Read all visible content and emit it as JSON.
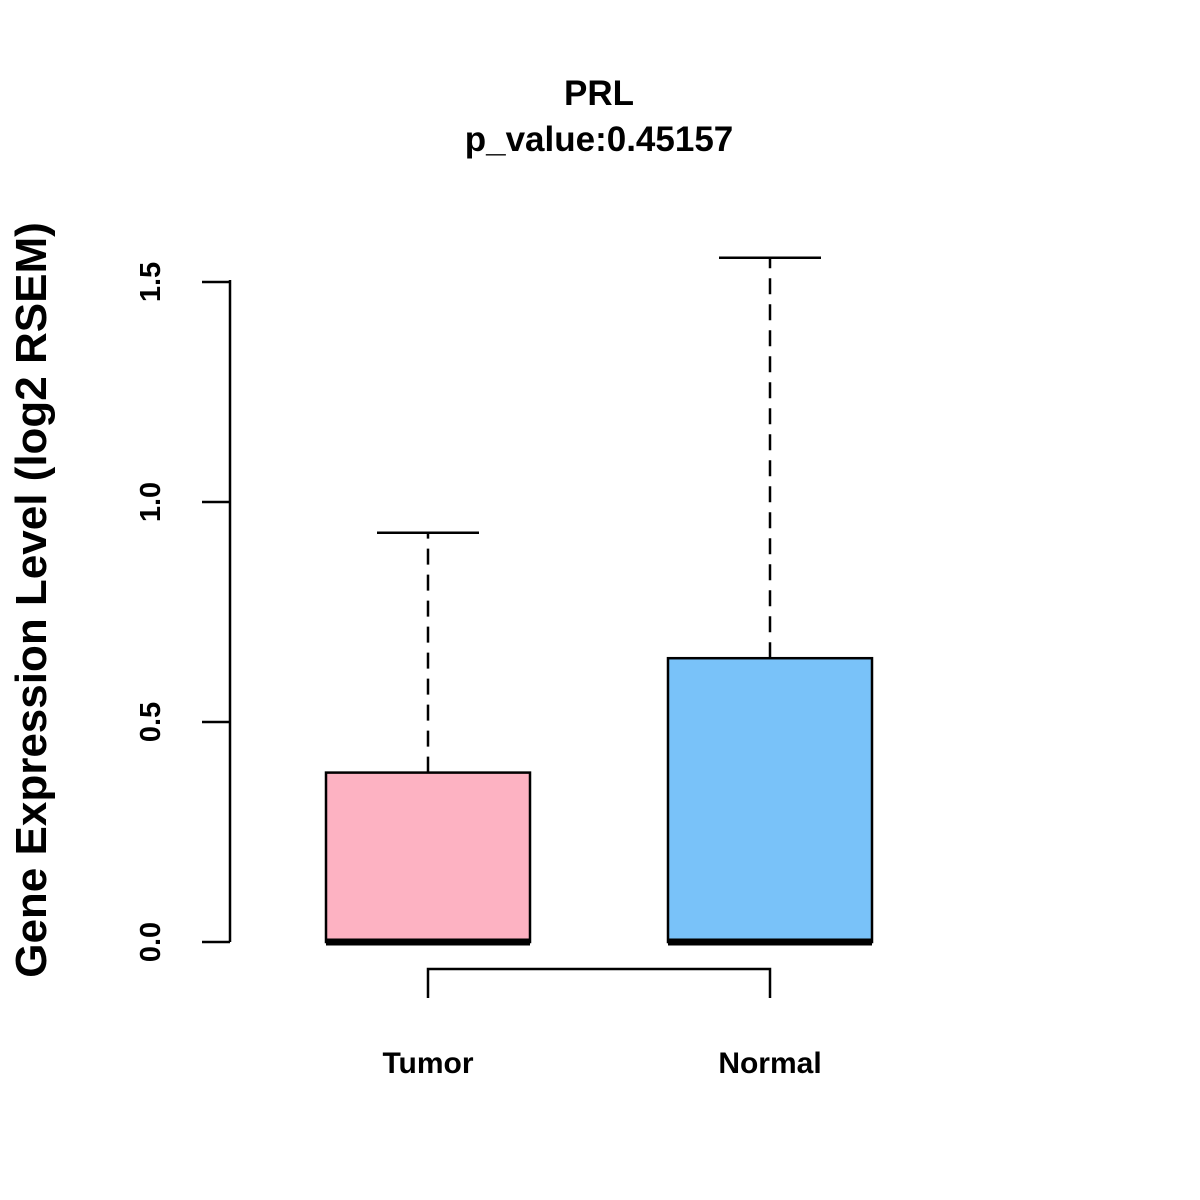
{
  "chart_data": {
    "type": "boxplot",
    "title": "PRL",
    "subtitle": "p_value:0.45157",
    "xlabel": "",
    "ylabel": "Gene Expression Level (log2 RSEM)",
    "ylim": [
      0,
      1.55
    ],
    "yticks": [
      "0.0",
      "0.5",
      "1.0",
      "1.5"
    ],
    "yticks_values": [
      0,
      0.5,
      1.0,
      1.5
    ],
    "categories": [
      "Tumor",
      "Normal"
    ],
    "boxes": [
      {
        "name": "Tumor",
        "min": 0,
        "q1": 0,
        "median": 0,
        "q3": 0.385,
        "max": 0.93,
        "color": "#FDB2C2"
      },
      {
        "name": "Normal",
        "min": 0,
        "q1": 0,
        "median": 0,
        "q3": 0.645,
        "max": 1.555,
        "color": "#79C2F9"
      }
    ],
    "comparison_bracket": [
      "Tumor",
      "Normal"
    ],
    "grid": false,
    "legend": "none"
  }
}
